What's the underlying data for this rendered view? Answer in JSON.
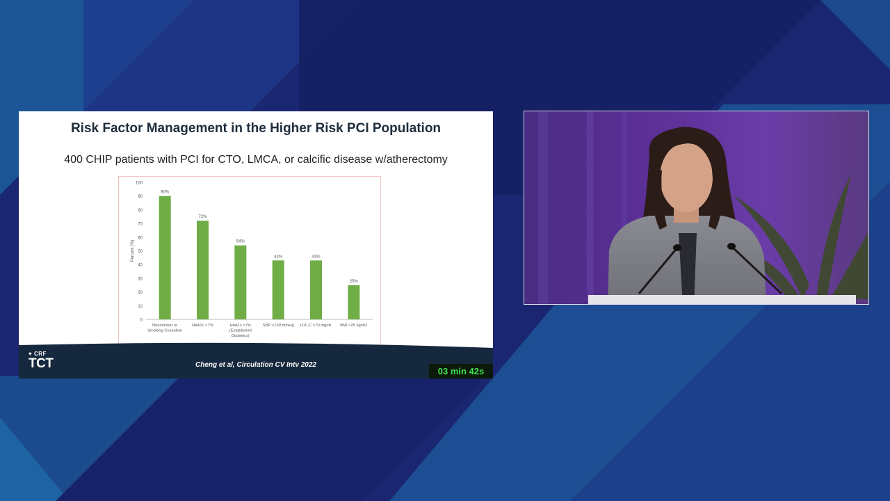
{
  "slide": {
    "title": "Risk Factor Management in the Higher Risk PCI Population",
    "subtitle": "400 CHIP patients with PCI for CTO, LMCA, or calcific disease w/atherectomy",
    "citation": "Cheng et al, Circulation CV Intv 2022",
    "timer": "03 min 42s",
    "logo_crf": "CRF",
    "logo_tct": "TCT"
  },
  "chart_data": {
    "type": "bar",
    "categories": [
      [
        "Nonsmoker or",
        "Smoking Cessation"
      ],
      [
        "HbA1c <7%"
      ],
      [
        "HbA1c <7%",
        "(Established",
        "Diabetics)"
      ],
      [
        "SBP <130 mmHg"
      ],
      [
        "LDL-C <70 mg/dL"
      ],
      [
        "BMI <25 kg/m2"
      ]
    ],
    "values": [
      90,
      72,
      54,
      43,
      43,
      25
    ],
    "data_labels": [
      "90%",
      "72%",
      "54%",
      "43%",
      "43%",
      "25%"
    ],
    "ylabel": "Percent (%)",
    "ylim": [
      0,
      100
    ],
    "yticks": [
      0,
      10,
      20,
      30,
      40,
      50,
      60,
      70,
      80,
      90,
      100
    ],
    "bar_color": "#70ad47",
    "grid": false
  },
  "colors": {
    "background_dark": "#1b2a78",
    "background_light": "#1f5e9e",
    "footer": "#16283d",
    "timer_text": "#3ee04a"
  }
}
